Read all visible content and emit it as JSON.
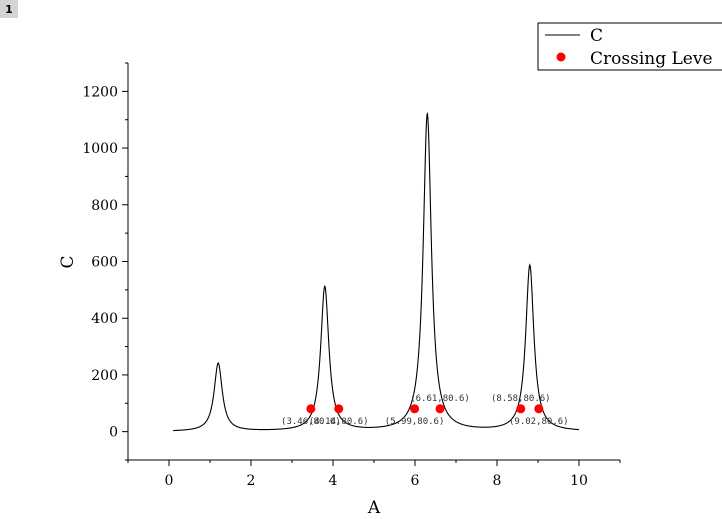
{
  "page_badge": "1",
  "chart_data": {
    "type": "line",
    "title": "",
    "xlabel": "A",
    "ylabel": "C",
    "xlim": [
      -1,
      11
    ],
    "ylim": [
      -100,
      1300
    ],
    "x_ticks": [
      0,
      2,
      4,
      6,
      8,
      10
    ],
    "y_ticks": [
      0,
      200,
      400,
      600,
      800,
      1000,
      1200
    ],
    "legend_position": "top-right",
    "grid": false,
    "series": [
      {
        "name": "C",
        "color": "#000000",
        "peaks": [
          {
            "x": 1.2,
            "height": 240
          },
          {
            "x": 3.8,
            "height": 510
          },
          {
            "x": 6.3,
            "height": 1120
          },
          {
            "x": 8.8,
            "height": 585
          }
        ],
        "x_range": [
          0.1,
          10.0
        ]
      },
      {
        "name": "Crossing Leve",
        "type": "scatter",
        "color": "#ff0000",
        "points": [
          {
            "x": 3.46,
            "y": 80.6,
            "label": "(3.46,80.6)",
            "label_side": "below"
          },
          {
            "x": 4.14,
            "y": 80.6,
            "label": "(4.14,80.6)",
            "label_side": "below"
          },
          {
            "x": 5.99,
            "y": 80.6,
            "label": "(5.99,80.6)",
            "label_side": "below"
          },
          {
            "x": 6.61,
            "y": 80.6,
            "label": "(6.61,80.6)",
            "label_side": "above"
          },
          {
            "x": 8.58,
            "y": 80.6,
            "label": "(8.58,80.6)",
            "label_side": "above"
          },
          {
            "x": 9.02,
            "y": 80.6,
            "label": "(9.02,80.6)",
            "label_side": "below"
          }
        ]
      }
    ]
  }
}
